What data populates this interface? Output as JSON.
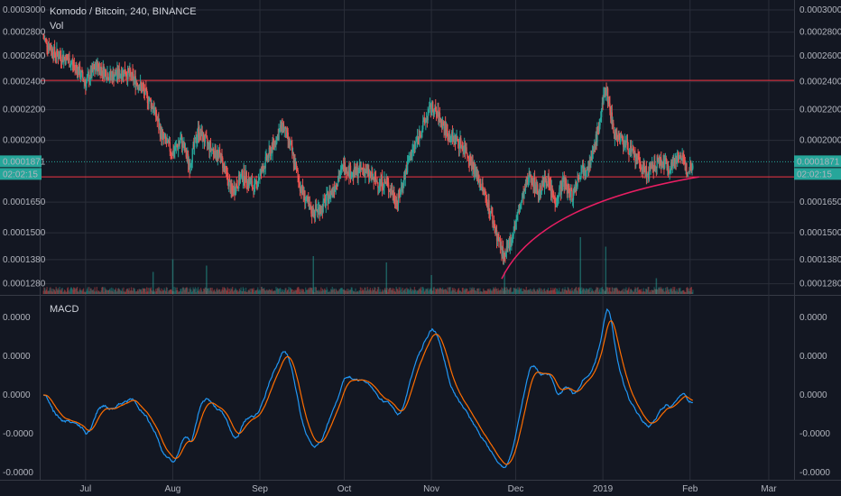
{
  "chart_data": {
    "type": "candlestick",
    "symbol_title": "Komodo / Bitcoin, 240, BINANCE",
    "volume_label": "Vol",
    "indicator_label": "MACD",
    "price_axis": {
      "ticks": [
        "0.0003000",
        "0.0002800",
        "0.0002600",
        "0.0002400",
        "0.0002200",
        "0.0002000",
        "0.0001650",
        "0.0001500",
        "0.0001380",
        "0.0001280"
      ],
      "tick_values": [
        0.0003,
        0.00028,
        0.00026,
        0.00024,
        0.00022,
        0.0002,
        0.000165,
        0.00015,
        0.000138,
        0.000128
      ],
      "scale": "log",
      "range": [
        0.000124,
        0.000306
      ]
    },
    "macd_axis": {
      "ticks": [
        "0.0000",
        "0.0000",
        "0.0000",
        "-0.0000",
        "-0.0000"
      ]
    },
    "time_axis": {
      "ticks": [
        "Jul",
        "Aug",
        "Sep",
        "Oct",
        "Nov",
        "Dec",
        "2019",
        "Feb",
        "Mar"
      ]
    },
    "current_price": {
      "label": "0.0001871",
      "value": 0.0001871,
      "countdown": "02:02:15",
      "color": "#26a69a"
    },
    "horizontal_levels": [
      {
        "value": 0.000241,
        "color": "#f23645"
      },
      {
        "value": 0.0001785,
        "color": "#f23645"
      }
    ],
    "trendline": {
      "color": "#e91e63",
      "from": {
        "date": "2018-11-26",
        "price": 0.00013
      },
      "to": {
        "date": "2019-02-01",
        "price": 0.0001785
      }
    },
    "price_path": [
      [
        "2018-06-16",
        0.000275
      ],
      [
        "2018-06-20",
        0.000262
      ],
      [
        "2018-06-24",
        0.000258
      ],
      [
        "2018-06-28",
        0.00025
      ],
      [
        "2018-07-01",
        0.000239
      ],
      [
        "2018-07-05",
        0.000252
      ],
      [
        "2018-07-10",
        0.000244
      ],
      [
        "2018-07-15",
        0.000248
      ],
      [
        "2018-07-20",
        0.000238
      ],
      [
        "2018-07-25",
        0.000222
      ],
      [
        "2018-07-28",
        0.000203
      ],
      [
        "2018-08-01",
        0.000192
      ],
      [
        "2018-08-04",
        0.0002
      ],
      [
        "2018-08-07",
        0.000185
      ],
      [
        "2018-08-10",
        0.000206
      ],
      [
        "2018-08-14",
        0.000196
      ],
      [
        "2018-08-18",
        0.00019
      ],
      [
        "2018-08-22",
        0.00017
      ],
      [
        "2018-08-26",
        0.00018
      ],
      [
        "2018-08-30",
        0.000172
      ],
      [
        "2018-09-03",
        0.000187
      ],
      [
        "2018-09-06",
        0.000198
      ],
      [
        "2018-09-09",
        0.00021
      ],
      [
        "2018-09-12",
        0.000195
      ],
      [
        "2018-09-15",
        0.000175
      ],
      [
        "2018-09-19",
        0.00016
      ],
      [
        "2018-09-23",
        0.000162
      ],
      [
        "2018-09-27",
        0.000172
      ],
      [
        "2018-10-01",
        0.000185
      ],
      [
        "2018-10-04",
        0.00018
      ],
      [
        "2018-10-08",
        0.000183
      ],
      [
        "2018-10-12",
        0.000176
      ],
      [
        "2018-10-16",
        0.000175
      ],
      [
        "2018-10-20",
        0.000165
      ],
      [
        "2018-10-24",
        0.000188
      ],
      [
        "2018-10-28",
        0.000205
      ],
      [
        "2018-11-01",
        0.000222
      ],
      [
        "2018-11-04",
        0.000214
      ],
      [
        "2018-11-07",
        0.000203
      ],
      [
        "2018-11-10",
        0.0002
      ],
      [
        "2018-11-13",
        0.000195
      ],
      [
        "2018-11-17",
        0.00018
      ],
      [
        "2018-11-21",
        0.000165
      ],
      [
        "2018-11-24",
        0.00015
      ],
      [
        "2018-11-27",
        0.000138
      ],
      [
        "2018-11-30",
        0.00015
      ],
      [
        "2018-12-03",
        0.000165
      ],
      [
        "2018-12-06",
        0.00018
      ],
      [
        "2018-12-09",
        0.00017
      ],
      [
        "2018-12-12",
        0.000178
      ],
      [
        "2018-12-15",
        0.000165
      ],
      [
        "2018-12-18",
        0.000176
      ],
      [
        "2018-12-21",
        0.000168
      ],
      [
        "2018-12-24",
        0.000182
      ],
      [
        "2018-12-28",
        0.000188
      ],
      [
        "2018-12-31",
        0.000213
      ],
      [
        "2019-01-02",
        0.000236
      ],
      [
        "2019-01-05",
        0.000205
      ],
      [
        "2019-01-09",
        0.000198
      ],
      [
        "2019-01-13",
        0.000188
      ],
      [
        "2019-01-17",
        0.00018
      ],
      [
        "2019-01-21",
        0.000188
      ],
      [
        "2019-01-25",
        0.000184
      ],
      [
        "2019-01-28",
        0.000192
      ],
      [
        "2019-01-31",
        0.000182
      ],
      [
        "2019-02-02",
        0.000187
      ]
    ],
    "volume_spikes": [
      [
        "2018-07-25",
        0.35
      ],
      [
        "2018-08-01",
        0.55
      ],
      [
        "2018-08-13",
        0.45
      ],
      [
        "2018-09-20",
        0.6
      ],
      [
        "2018-10-16",
        0.5
      ],
      [
        "2018-11-01",
        0.3
      ],
      [
        "2018-11-27",
        0.35
      ],
      [
        "2018-12-24",
        0.9
      ],
      [
        "2019-01-02",
        0.75
      ],
      [
        "2019-01-20",
        0.25
      ]
    ],
    "macd_series": {
      "macd_color": "#2196f3",
      "signal_color": "#ff6d00"
    },
    "colors": {
      "up": "#26a69a",
      "down": "#ef5350",
      "background": "#131722",
      "grid": "#2a2e39",
      "text": "#b2b5be"
    }
  }
}
